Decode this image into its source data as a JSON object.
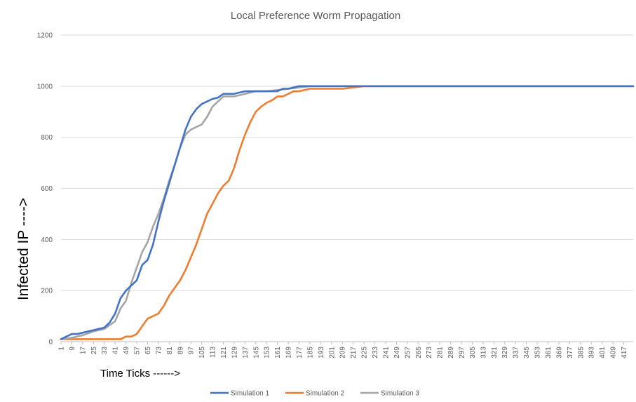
{
  "chart_data": {
    "type": "line",
    "title": "Local Preference Worm Propagation",
    "xlabel": "Time Ticks ------>",
    "ylabel": "Infected IP ---->",
    "ylim": [
      0,
      1200
    ],
    "yticks": [
      0,
      200,
      400,
      600,
      800,
      1000,
      1200
    ],
    "xlim": [
      1,
      424
    ],
    "xticks": [
      1,
      9,
      17,
      25,
      33,
      41,
      49,
      57,
      65,
      73,
      81,
      89,
      97,
      105,
      113,
      121,
      129,
      137,
      145,
      153,
      161,
      169,
      177,
      185,
      193,
      201,
      209,
      217,
      225,
      233,
      241,
      249,
      257,
      265,
      273,
      281,
      289,
      297,
      305,
      313,
      321,
      329,
      337,
      345,
      353,
      361,
      369,
      377,
      385,
      393,
      401,
      409,
      417
    ],
    "grid": "horizontal",
    "legend_position": "bottom",
    "series": [
      {
        "name": "Simulation 1",
        "color": "#4472C4",
        "x": [
          1,
          5,
          9,
          13,
          17,
          21,
          25,
          29,
          33,
          37,
          41,
          45,
          49,
          53,
          57,
          61,
          65,
          69,
          73,
          77,
          81,
          85,
          89,
          93,
          97,
          101,
          105,
          109,
          113,
          117,
          121,
          125,
          129,
          133,
          137,
          141,
          145,
          149,
          153,
          157,
          161,
          165,
          169,
          173,
          177,
          181,
          185,
          193,
          209,
          225,
          300,
          424
        ],
        "y": [
          10,
          20,
          30,
          30,
          35,
          40,
          45,
          50,
          55,
          75,
          110,
          170,
          200,
          220,
          240,
          300,
          320,
          380,
          470,
          550,
          620,
          690,
          760,
          830,
          880,
          910,
          930,
          940,
          950,
          955,
          970,
          970,
          970,
          975,
          980,
          980,
          980,
          980,
          980,
          980,
          980,
          990,
          990,
          995,
          1000,
          1000,
          1000,
          1000,
          1000,
          1000,
          1000,
          1000
        ]
      },
      {
        "name": "Simulation 2",
        "color": "#ED7D31",
        "x": [
          1,
          9,
          17,
          25,
          33,
          41,
          45,
          49,
          53,
          57,
          61,
          65,
          69,
          73,
          77,
          81,
          85,
          89,
          93,
          97,
          101,
          105,
          109,
          113,
          117,
          121,
          125,
          129,
          133,
          137,
          141,
          145,
          149,
          153,
          157,
          161,
          165,
          169,
          173,
          177,
          181,
          185,
          193,
          201,
          209,
          217,
          225,
          300,
          424
        ],
        "y": [
          10,
          10,
          10,
          10,
          10,
          10,
          10,
          20,
          20,
          30,
          60,
          90,
          100,
          110,
          140,
          180,
          210,
          240,
          280,
          330,
          380,
          440,
          500,
          540,
          580,
          610,
          630,
          680,
          750,
          810,
          860,
          900,
          920,
          935,
          945,
          960,
          960,
          970,
          980,
          980,
          985,
          990,
          990,
          990,
          990,
          995,
          1000,
          1000,
          1000
        ]
      },
      {
        "name": "Simulation 3",
        "color": "#A5A5A5",
        "x": [
          1,
          9,
          17,
          25,
          33,
          41,
          45,
          49,
          53,
          57,
          61,
          65,
          69,
          73,
          77,
          81,
          85,
          89,
          93,
          97,
          101,
          105,
          109,
          113,
          117,
          121,
          125,
          129,
          133,
          137,
          141,
          145,
          153,
          161,
          169,
          177,
          185,
          193,
          209,
          225,
          300,
          424
        ],
        "y": [
          10,
          15,
          25,
          40,
          50,
          80,
          130,
          160,
          230,
          290,
          350,
          390,
          450,
          500,
          560,
          630,
          690,
          760,
          810,
          830,
          840,
          850,
          880,
          920,
          940,
          960,
          960,
          960,
          965,
          970,
          975,
          980,
          980,
          985,
          990,
          995,
          1000,
          1000,
          1000,
          1000,
          1000,
          1000
        ]
      }
    ]
  }
}
